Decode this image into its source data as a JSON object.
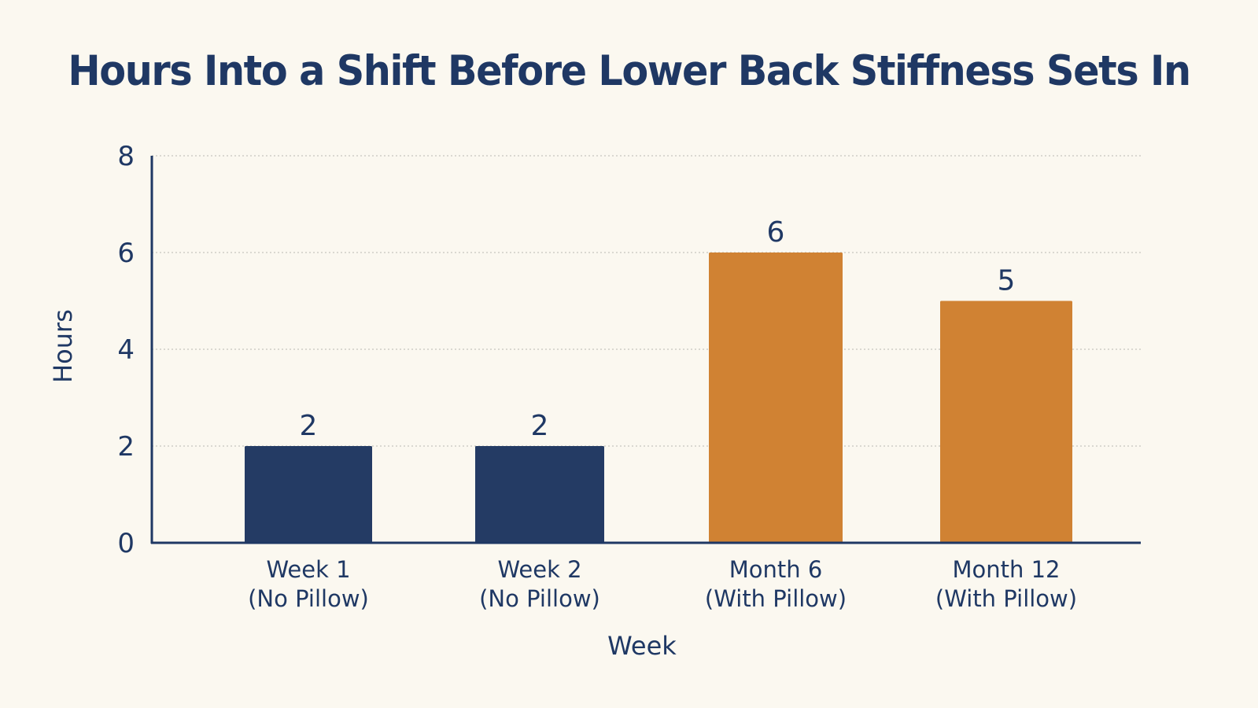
{
  "chart_data": {
    "type": "bar",
    "title": "Hours Into a Shift Before Lower Back Stiffness Sets In",
    "xlabel": "Week",
    "ylabel": "Hours",
    "categories": [
      [
        "Week 1",
        "(No Pillow)"
      ],
      [
        "Week 2",
        "(No Pillow)"
      ],
      [
        "Month 6",
        "(With Pillow)"
      ],
      [
        "Month 12",
        "(With Pillow)"
      ]
    ],
    "values": [
      2,
      2,
      6,
      5
    ],
    "bar_colors": [
      "#243b64",
      "#243b64",
      "#d08233",
      "#d08233"
    ],
    "ylim": [
      0,
      8
    ],
    "yticks": [
      0,
      2,
      4,
      6,
      8
    ],
    "grid": true,
    "data_labels": true
  }
}
